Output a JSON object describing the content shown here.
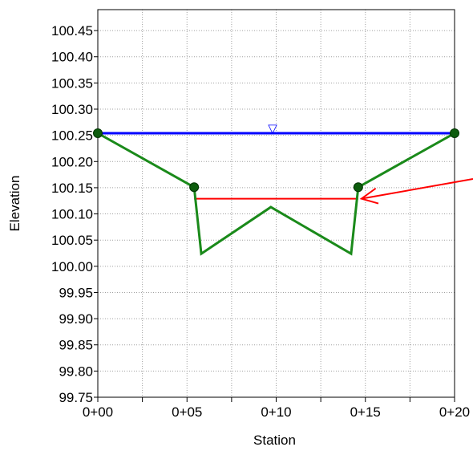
{
  "chart_data": {
    "type": "line",
    "xlabel": "Station",
    "ylabel": "Elevation",
    "xlim": [
      0,
      20
    ],
    "ylim": [
      99.75,
      100.49
    ],
    "grid": true,
    "x_ticks": [
      0,
      2.5,
      5,
      7.5,
      10,
      12.5,
      15,
      17.5,
      20
    ],
    "x_tick_labels": [
      {
        "x": 0,
        "label": "0+00"
      },
      {
        "x": 5,
        "label": "0+05"
      },
      {
        "x": 10,
        "label": "0+10"
      },
      {
        "x": 15,
        "label": "0+15"
      },
      {
        "x": 20,
        "label": "0+20"
      }
    ],
    "y_tick_labels": [
      {
        "y": 100.45,
        "label": "100.45"
      },
      {
        "y": 100.4,
        "label": "100.40"
      },
      {
        "y": 100.35,
        "label": "100.35"
      },
      {
        "y": 100.3,
        "label": "100.30"
      },
      {
        "y": 100.25,
        "label": "100.25"
      },
      {
        "y": 100.2,
        "label": "100.20"
      },
      {
        "y": 100.15,
        "label": "100.15"
      },
      {
        "y": 100.1,
        "label": "100.10"
      },
      {
        "y": 100.05,
        "label": "100.05"
      },
      {
        "y": 100.0,
        "label": "100.00"
      },
      {
        "y": 99.95,
        "label": "99.95"
      },
      {
        "y": 99.9,
        "label": "99.90"
      },
      {
        "y": 99.85,
        "label": "99.85"
      },
      {
        "y": 99.8,
        "label": "99.80"
      },
      {
        "y": 99.75,
        "label": "99.75"
      }
    ],
    "series": [
      {
        "role": "ground-profile",
        "color": "#1a8a1a",
        "x": [
          0,
          5.4,
          5.8,
          9.7,
          14.2,
          14.6,
          20
        ],
        "y": [
          100.254,
          100.151,
          100.024,
          100.113,
          100.024,
          100.151,
          100.254
        ],
        "markers_x": [
          0,
          5.4,
          14.6,
          20
        ],
        "markers_y": [
          100.254,
          100.151,
          100.151,
          100.254
        ]
      },
      {
        "role": "water-surface",
        "color": "#0000ff",
        "x": [
          0,
          20
        ],
        "y": [
          100.254,
          100.254
        ],
        "symbol": "▽",
        "symbol_x": 9.8
      },
      {
        "role": "internal-level",
        "color": "#ff0000",
        "x": [
          5.4,
          14.6
        ],
        "y": [
          100.129,
          100.129
        ]
      }
    ],
    "annotation": {
      "type": "arrow",
      "color": "#ff0000",
      "points_to_x": 14.6,
      "points_to_y": 100.129
    }
  }
}
